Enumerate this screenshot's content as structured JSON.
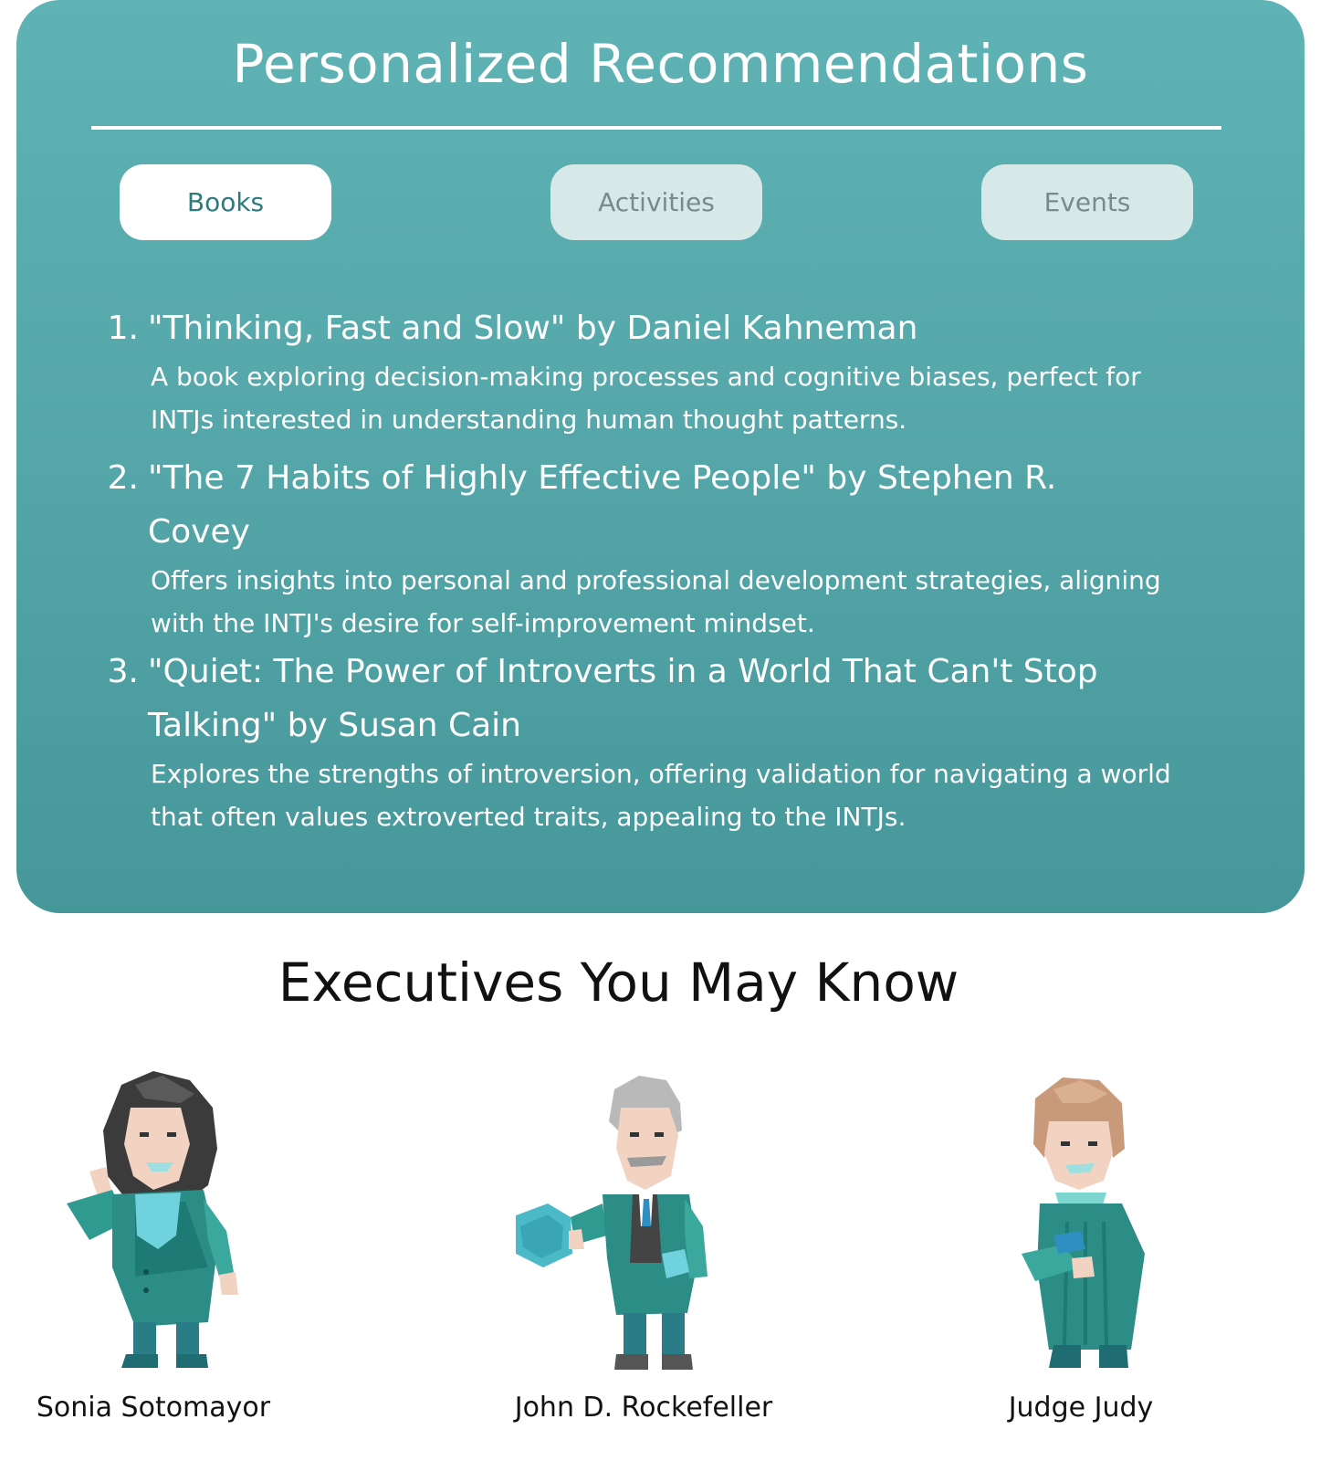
{
  "recommendations": {
    "title": "Personalized Recommendations",
    "tabs": [
      {
        "label": "Books",
        "active": true
      },
      {
        "label": "Activities",
        "active": false
      },
      {
        "label": "Events",
        "active": false
      }
    ],
    "books": [
      {
        "number": "1.",
        "title": "\"Thinking, Fast and Slow\" by Daniel Kahneman",
        "description": "A book exploring decision-making processes and cognitive biases, perfect for INTJs interested in understanding human thought patterns."
      },
      {
        "number": "2.",
        "title": "\"The 7 Habits of Highly Effective People\" by Stephen R. Covey",
        "description": "Offers insights into personal and professional development strategies, aligning with the INTJ's desire for self-improvement mindset."
      },
      {
        "number": "3.",
        "title": "\"Quiet: The Power of Introverts in a World That Can't Stop Talking\" by Susan Cain",
        "description": "Explores the strengths of introversion, offering validation for navigating a world that often values extroverted traits, appealing to the INTJs."
      }
    ]
  },
  "executives": {
    "heading": "Executives You May Know",
    "people": [
      {
        "name": "Sonia Sotomayor",
        "icon": "sonia-sotomayor-illustration"
      },
      {
        "name": "John D. Rockefeller",
        "icon": "john-rockefeller-illustration"
      },
      {
        "name": "Judge Judy",
        "icon": "judge-judy-illustration"
      }
    ]
  },
  "colors": {
    "card_top": "#5fb3b5",
    "card_bottom": "#46979a",
    "tab_active_bg": "#ffffff",
    "tab_inactive_bg": "#d6e8e7",
    "accent": "#2c7c7c"
  }
}
